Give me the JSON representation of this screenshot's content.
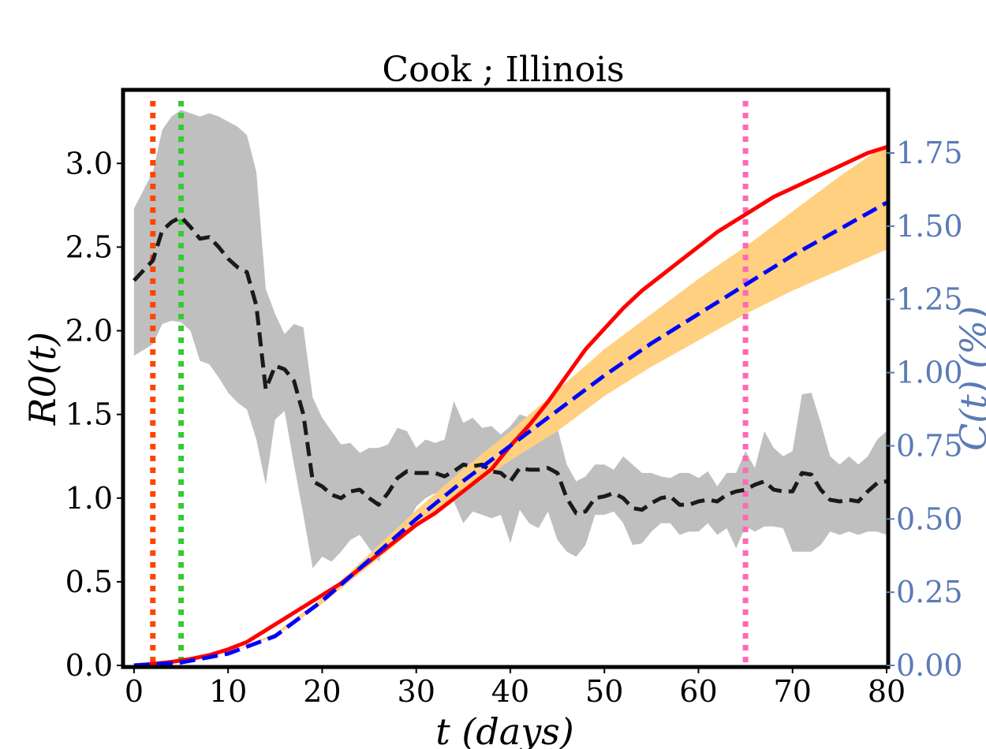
{
  "chart_data": {
    "type": "line",
    "title": "Cook ; Illinois",
    "xlabel": "t (days)",
    "ylabel_left": "R0(t)",
    "ylabel_right": "C(t) (%)",
    "xlim": [
      -1,
      80
    ],
    "ylim_left": [
      0,
      3.43
    ],
    "ylim_right": [
      0,
      1.96
    ],
    "x_ticks": [
      0,
      10,
      20,
      30,
      40,
      50,
      60,
      70,
      80
    ],
    "y_ticks_left": [
      0.0,
      0.5,
      1.0,
      1.5,
      2.0,
      2.5,
      3.0
    ],
    "y_ticks_left_labels": [
      "0.0",
      "0.5",
      "1.0",
      "1.5",
      "2.0",
      "2.5",
      "3.0"
    ],
    "y_ticks_right": [
      0,
      0.25,
      0.5,
      0.75,
      1.0,
      1.25,
      1.5,
      1.75
    ],
    "y_ticks_right_labels": [
      "0.00",
      "0.25",
      "0.50",
      "0.75",
      "1.00",
      "1.25",
      "1.50",
      "1.75"
    ],
    "colors": {
      "r0_mean": "#1a1a1a",
      "r0_band": "#bfbfbf",
      "observed": "#ff0000",
      "fit": "#0000ff",
      "fit_band": "#ffd080",
      "right_axis": "#5a7bb5",
      "vline_1": "#ff4500",
      "vline_2": "#33cc33",
      "vline_3": "#ff69b4"
    },
    "vertical_lines": [
      {
        "x": 2,
        "color": "#ff4500",
        "style": "dotted"
      },
      {
        "x": 5,
        "color": "#33cc33",
        "style": "dotted"
      },
      {
        "x": 65,
        "color": "#ff69b4",
        "style": "dotted"
      }
    ],
    "r0_series": {
      "x": [
        0,
        2,
        3,
        4,
        5,
        6,
        7,
        8,
        9,
        10,
        11,
        12,
        13,
        14,
        15,
        16,
        17,
        18,
        19,
        20,
        21,
        22,
        23,
        24,
        25,
        26,
        27,
        28,
        29,
        30,
        31,
        32,
        33,
        34,
        35,
        36,
        37,
        38,
        39,
        40,
        41,
        42,
        43,
        44,
        45,
        46,
        47,
        48,
        49,
        50,
        51,
        52,
        53,
        54,
        55,
        56,
        57,
        58,
        59,
        60,
        61,
        62,
        63,
        64,
        65,
        66,
        67,
        68,
        69,
        70,
        71,
        72,
        73,
        74,
        75,
        76,
        77,
        78,
        79,
        80
      ],
      "mean": [
        2.3,
        2.42,
        2.6,
        2.65,
        2.68,
        2.62,
        2.55,
        2.56,
        2.5,
        2.43,
        2.38,
        2.35,
        2.15,
        1.65,
        1.79,
        1.77,
        1.7,
        1.5,
        1.1,
        1.07,
        1.02,
        1.0,
        1.04,
        1.05,
        1.0,
        0.96,
        1.03,
        1.12,
        1.16,
        1.15,
        1.15,
        1.15,
        1.13,
        1.16,
        1.2,
        1.19,
        1.2,
        1.16,
        1.15,
        1.1,
        1.18,
        1.17,
        1.17,
        1.18,
        1.15,
        1.0,
        0.91,
        0.92,
        1.0,
        1.01,
        1.03,
        1.0,
        0.94,
        0.93,
        0.97,
        1.0,
        1.01,
        0.96,
        0.96,
        0.98,
        0.99,
        0.98,
        1.02,
        1.04,
        1.05,
        1.08,
        1.1,
        1.05,
        1.04,
        1.04,
        1.15,
        1.14,
        1.05,
        0.99,
        0.98,
        0.99,
        0.98,
        1.04,
        1.09,
        1.1
      ],
      "lower": [
        1.85,
        1.92,
        2.04,
        2.06,
        2.05,
        2.0,
        1.82,
        1.8,
        1.72,
        1.63,
        1.57,
        1.53,
        1.35,
        1.08,
        1.47,
        1.52,
        1.2,
        0.9,
        0.58,
        0.65,
        0.62,
        0.68,
        0.75,
        0.78,
        0.7,
        0.62,
        0.75,
        0.82,
        0.84,
        0.95,
        1.0,
        1.03,
        0.95,
        0.98,
        0.85,
        0.92,
        0.9,
        0.88,
        0.9,
        0.73,
        0.93,
        0.85,
        0.82,
        0.92,
        0.75,
        0.68,
        0.65,
        0.72,
        0.9,
        0.9,
        0.92,
        0.85,
        0.72,
        0.73,
        0.8,
        0.85,
        0.85,
        0.78,
        0.8,
        0.8,
        0.85,
        0.78,
        0.82,
        0.7,
        0.83,
        0.8,
        0.83,
        0.83,
        0.82,
        0.68,
        0.68,
        0.68,
        0.72,
        0.8,
        0.78,
        0.8,
        0.78,
        0.8,
        0.8,
        0.78
      ],
      "upper": [
        2.73,
        2.95,
        3.2,
        3.28,
        3.32,
        3.3,
        3.28,
        3.3,
        3.28,
        3.25,
        3.22,
        3.17,
        2.95,
        2.25,
        2.1,
        1.98,
        2.04,
        2.02,
        1.6,
        1.48,
        1.4,
        1.32,
        1.33,
        1.27,
        1.3,
        1.3,
        1.32,
        1.42,
        1.4,
        1.3,
        1.35,
        1.33,
        1.35,
        1.58,
        1.45,
        1.48,
        1.42,
        1.43,
        1.38,
        1.43,
        1.5,
        1.48,
        1.5,
        1.48,
        1.42,
        1.2,
        1.1,
        1.13,
        1.2,
        1.2,
        1.17,
        1.25,
        1.2,
        1.15,
        1.15,
        1.13,
        1.12,
        1.15,
        1.15,
        1.12,
        1.16,
        1.07,
        1.15,
        1.15,
        1.28,
        1.18,
        1.4,
        1.3,
        1.25,
        1.28,
        1.62,
        1.63,
        1.45,
        1.25,
        1.2,
        1.25,
        1.2,
        1.25,
        1.35,
        1.4
      ]
    },
    "cumulative_observed": {
      "x": [
        0,
        2,
        4,
        6,
        8,
        10,
        12,
        14,
        16,
        18,
        20,
        22,
        24,
        26,
        28,
        30,
        32,
        34,
        36,
        38,
        40,
        42,
        44,
        46,
        48,
        50,
        52,
        54,
        56,
        58,
        60,
        62,
        64,
        66,
        68,
        70,
        72,
        74,
        76,
        78,
        80
      ],
      "y": [
        0.0,
        0.005,
        0.012,
        0.022,
        0.035,
        0.055,
        0.08,
        0.12,
        0.16,
        0.2,
        0.24,
        0.28,
        0.33,
        0.38,
        0.43,
        0.48,
        0.52,
        0.57,
        0.62,
        0.67,
        0.75,
        0.82,
        0.9,
        0.99,
        1.08,
        1.15,
        1.22,
        1.28,
        1.33,
        1.38,
        1.43,
        1.48,
        1.52,
        1.56,
        1.6,
        1.63,
        1.66,
        1.69,
        1.72,
        1.75,
        1.77
      ]
    },
    "cumulative_fit": {
      "x": [
        0,
        5,
        10,
        15,
        20,
        25,
        30,
        35,
        40,
        45,
        50,
        55,
        60,
        65,
        70,
        75,
        80
      ],
      "y": [
        0.0,
        0.01,
        0.04,
        0.1,
        0.22,
        0.36,
        0.5,
        0.63,
        0.75,
        0.87,
        0.99,
        1.1,
        1.2,
        1.3,
        1.4,
        1.49,
        1.58
      ],
      "lower": [
        0.0,
        0.01,
        0.04,
        0.1,
        0.21,
        0.34,
        0.47,
        0.59,
        0.7,
        0.8,
        0.92,
        1.02,
        1.11,
        1.2,
        1.28,
        1.35,
        1.42
      ],
      "upper": [
        0.0,
        0.01,
        0.04,
        0.11,
        0.23,
        0.38,
        0.53,
        0.67,
        0.8,
        0.94,
        1.08,
        1.2,
        1.32,
        1.43,
        1.55,
        1.67,
        1.78
      ]
    }
  }
}
